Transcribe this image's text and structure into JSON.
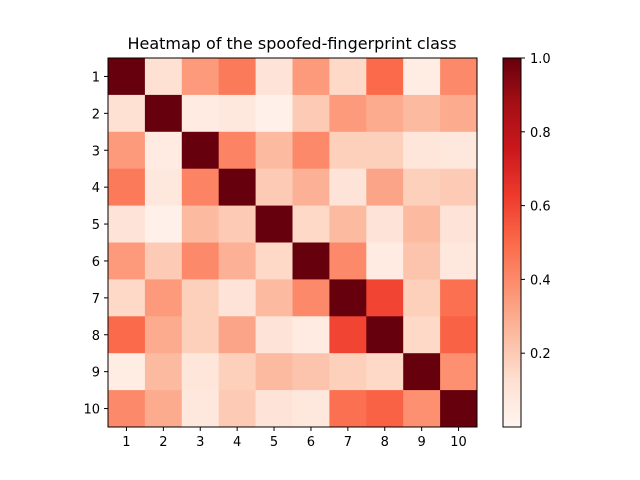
{
  "chart_data": {
    "type": "heatmap",
    "title": "Heatmap of the spoofed-fingerprint class",
    "xlabel": "",
    "ylabel": "",
    "x_categories": [
      "1",
      "2",
      "3",
      "4",
      "5",
      "6",
      "7",
      "8",
      "9",
      "10"
    ],
    "y_categories": [
      "1",
      "2",
      "3",
      "4",
      "5",
      "6",
      "7",
      "8",
      "9",
      "10"
    ],
    "values": [
      [
        1.0,
        0.12,
        0.35,
        0.45,
        0.1,
        0.35,
        0.15,
        0.5,
        0.05,
        0.4
      ],
      [
        0.12,
        1.0,
        0.06,
        0.08,
        0.03,
        0.2,
        0.35,
        0.3,
        0.25,
        0.3
      ],
      [
        0.35,
        0.06,
        1.0,
        0.42,
        0.25,
        0.4,
        0.18,
        0.18,
        0.09,
        0.08
      ],
      [
        0.45,
        0.08,
        0.42,
        1.0,
        0.2,
        0.28,
        0.1,
        0.32,
        0.18,
        0.2
      ],
      [
        0.1,
        0.03,
        0.25,
        0.2,
        1.0,
        0.15,
        0.25,
        0.1,
        0.25,
        0.1
      ],
      [
        0.35,
        0.2,
        0.4,
        0.28,
        0.15,
        1.0,
        0.4,
        0.06,
        0.22,
        0.08
      ],
      [
        0.15,
        0.35,
        0.18,
        0.1,
        0.25,
        0.4,
        1.0,
        0.6,
        0.18,
        0.48
      ],
      [
        0.5,
        0.3,
        0.18,
        0.32,
        0.1,
        0.06,
        0.6,
        1.0,
        0.15,
        0.52
      ],
      [
        0.05,
        0.25,
        0.09,
        0.18,
        0.25,
        0.22,
        0.18,
        0.15,
        1.0,
        0.38
      ],
      [
        0.4,
        0.3,
        0.08,
        0.2,
        0.1,
        0.08,
        0.48,
        0.52,
        0.38,
        1.0
      ]
    ],
    "colorbar": {
      "min": 0.0,
      "max": 1.0,
      "ticks": [
        0.2,
        0.4,
        0.6,
        0.8,
        1.0
      ],
      "tick_labels": [
        "0.2",
        "0.4",
        "0.6",
        "0.8",
        "1.0"
      ]
    },
    "colormap": "Reds",
    "grid": false
  },
  "colors": {
    "background": "#ffffff",
    "axes": "#000000",
    "cmap_stops": [
      "#fff5f0",
      "#fee0d2",
      "#fcbba1",
      "#fc9272",
      "#fb6a4a",
      "#ef3b2c",
      "#cb181d",
      "#a50f15",
      "#67000d"
    ]
  }
}
